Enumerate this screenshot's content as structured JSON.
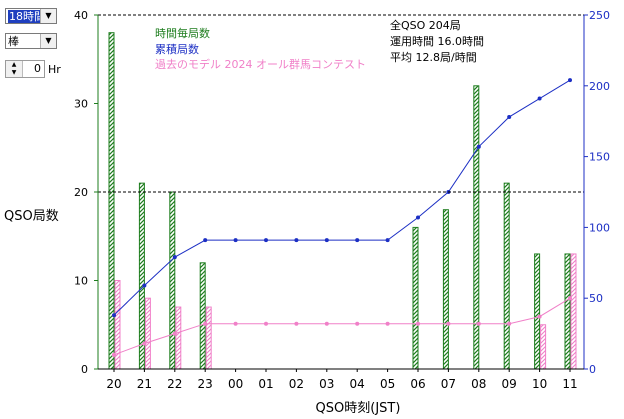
{
  "controls": {
    "hours_value": "18時間",
    "chart_style_value": "棒",
    "offset_value": "0",
    "offset_unit": "Hr"
  },
  "legend": {
    "hourly": "時間毎局数",
    "cumulative": "累積局数",
    "model": "過去のモデル 2024 オール群馬コンテスト"
  },
  "stats": {
    "line1": "全QSO 204局",
    "line2": "運用時間 16.0時間",
    "line3": "平均 12.8局/時間"
  },
  "colors": {
    "hourly_bar": "#1e7d1e",
    "cumulative_line": "#1c2fc4",
    "model": "#f080c8",
    "left_axis": "#1e7d1e",
    "right_axis": "#1c2fc4"
  },
  "chart_data": {
    "type": "bar",
    "categories": [
      "20",
      "21",
      "22",
      "23",
      "00",
      "01",
      "02",
      "03",
      "04",
      "05",
      "06",
      "07",
      "08",
      "09",
      "10",
      "11"
    ],
    "xlabel": "QSO時刻(JST)",
    "ylabel": "QSO局数",
    "ylim_left": [
      0,
      40
    ],
    "left_ticks": [
      "0",
      "10",
      "20",
      "30",
      "40"
    ],
    "ylim_right": [
      0,
      250
    ],
    "right_ticks": [
      "0",
      "50",
      "100",
      "150",
      "200",
      "250"
    ],
    "series": [
      {
        "name": "時間毎局数",
        "axis": "left",
        "kind": "bar",
        "values": [
          38,
          21,
          20,
          12,
          0,
          0,
          0,
          0,
          0,
          0,
          16,
          18,
          32,
          21,
          13,
          13
        ]
      },
      {
        "name": "過去のモデル 2024 オール群馬コンテスト",
        "axis": "left",
        "kind": "bar",
        "values": [
          10,
          8,
          7,
          7,
          0,
          0,
          0,
          0,
          0,
          0,
          0,
          0,
          0,
          0,
          5,
          13
        ]
      },
      {
        "name": "累積局数",
        "axis": "right",
        "kind": "line",
        "values": [
          38,
          59,
          79,
          91,
          91,
          91,
          91,
          91,
          91,
          91,
          107,
          125,
          157,
          178,
          191,
          204
        ]
      },
      {
        "name": "過去のモデル 2024 オール群馬コンテスト",
        "axis": "right",
        "kind": "line",
        "values": [
          10,
          18,
          25,
          32,
          32,
          32,
          32,
          32,
          32,
          32,
          32,
          32,
          32,
          32,
          37,
          50
        ]
      }
    ],
    "reference_lines_left": [
      20,
      40
    ]
  }
}
